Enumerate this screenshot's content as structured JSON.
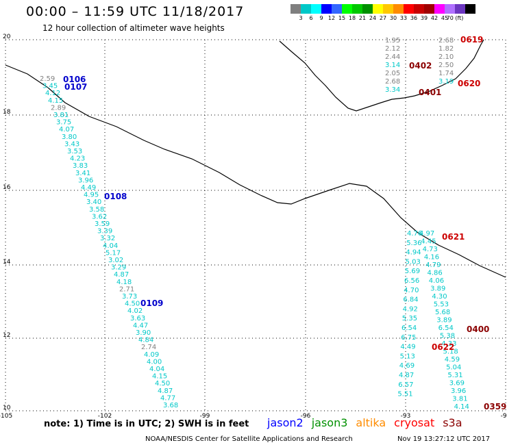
{
  "header": {
    "title": "00:00 – 11:59 UTC 11/18/2017",
    "subtitle": "12 hour collection of altimeter wave heights"
  },
  "colorbar": {
    "colors": [
      "#7f7f7f",
      "#00c8c8",
      "#00ffff",
      "#0000ff",
      "#3366ff",
      "#00ff00",
      "#00c800",
      "#009000",
      "#ffff00",
      "#ffc800",
      "#ff8c00",
      "#ff0000",
      "#c80000",
      "#a00000",
      "#ff00ff",
      "#b070ff",
      "#6c36c0",
      "#000000"
    ],
    "labels": [
      "3",
      "6",
      "9",
      "12",
      "15",
      "18",
      "21",
      "24",
      "27",
      "30",
      "33",
      "36",
      "39",
      "42",
      "45",
      "70 (ft)"
    ]
  },
  "map": {
    "lat_labels": [
      "20",
      "18",
      "16",
      "14",
      "12",
      "10"
    ],
    "lon_labels": [
      "-105",
      "-102",
      "-99",
      "-96",
      "-93",
      "-90"
    ]
  },
  "chart_data": {
    "type": "map",
    "units": "ft",
    "tracks": [
      {
        "satellite": "jason2",
        "color": "#0000cc",
        "time_labels": [
          "0106",
          "0107",
          "0108",
          "0109"
        ],
        "values": [
          "2.59",
          "3.45",
          "4.12",
          "4.15",
          "2.89",
          "3.81",
          "3.75",
          "4.07",
          "3.80",
          "3.43",
          "3.53",
          "4.23",
          "3.83",
          "3.41",
          "3.96",
          "4.49",
          "4.95",
          "3.40",
          "3.58",
          "3.62",
          "3.59",
          "3.39",
          "3.32",
          "4.04",
          "5.17",
          "3.02",
          "3.29",
          "4.87",
          "4.18",
          "2.71",
          "3.73",
          "4.50",
          "4.02",
          "3.63",
          "4.47",
          "3.90",
          "4.84",
          "2.74",
          "4.09",
          "4.00",
          "4.04",
          "4.15",
          "4.50",
          "4.87",
          "4.77",
          "3.68"
        ]
      },
      {
        "satellite": "cryosat",
        "color": "#cc0000",
        "time_labels": [
          "0619",
          "0620",
          "0621",
          "0622"
        ],
        "values": [
          "2.68",
          "1.82",
          "2.10",
          "2.50",
          "1.74",
          "3.19",
          "4.97",
          "4.45",
          "4.73",
          "4.16",
          "4.79",
          "4.86",
          "4.06",
          "3.89",
          "4.30",
          "5.53",
          "5.68",
          "3.89",
          "6.54",
          "5.38",
          "4.33",
          "5.18",
          "4.59",
          "5.04",
          "5.31",
          "3.69",
          "3.96",
          "3.81",
          "4.14"
        ]
      },
      {
        "satellite": "s3a",
        "color": "#8b0000",
        "time_labels": [
          "0402",
          "0401",
          "0400",
          "0359"
        ],
        "values": [
          "1.95",
          "2.12",
          "2.44",
          "3.14",
          "2.05",
          "2.68",
          "3.34",
          "4.76",
          "5.36",
          "4.94",
          "5.03",
          "5.69",
          "6.56",
          "4.70",
          "6.84",
          "4.92",
          "5.35",
          "6.54",
          "6.75",
          "4.49",
          "5.13",
          "4.69",
          "4.87",
          "6.57",
          "5.51"
        ]
      }
    ]
  },
  "footer": {
    "note": "note: 1) Time is in UTC; 2) SWH is in feet",
    "satellites": [
      {
        "name": "jason2",
        "color": "#0000ff"
      },
      {
        "name": "jason3",
        "color": "#009000"
      },
      {
        "name": "altika",
        "color": "#ff8c00"
      },
      {
        "name": "cryosat",
        "color": "#ff0000"
      },
      {
        "name": "s3a",
        "color": "#8b0000"
      }
    ],
    "credit": "NOAA/NESDIS Center for Satellite Applications and Research",
    "timestamp": "Nov 19 13:27:12 UTC 2017"
  }
}
